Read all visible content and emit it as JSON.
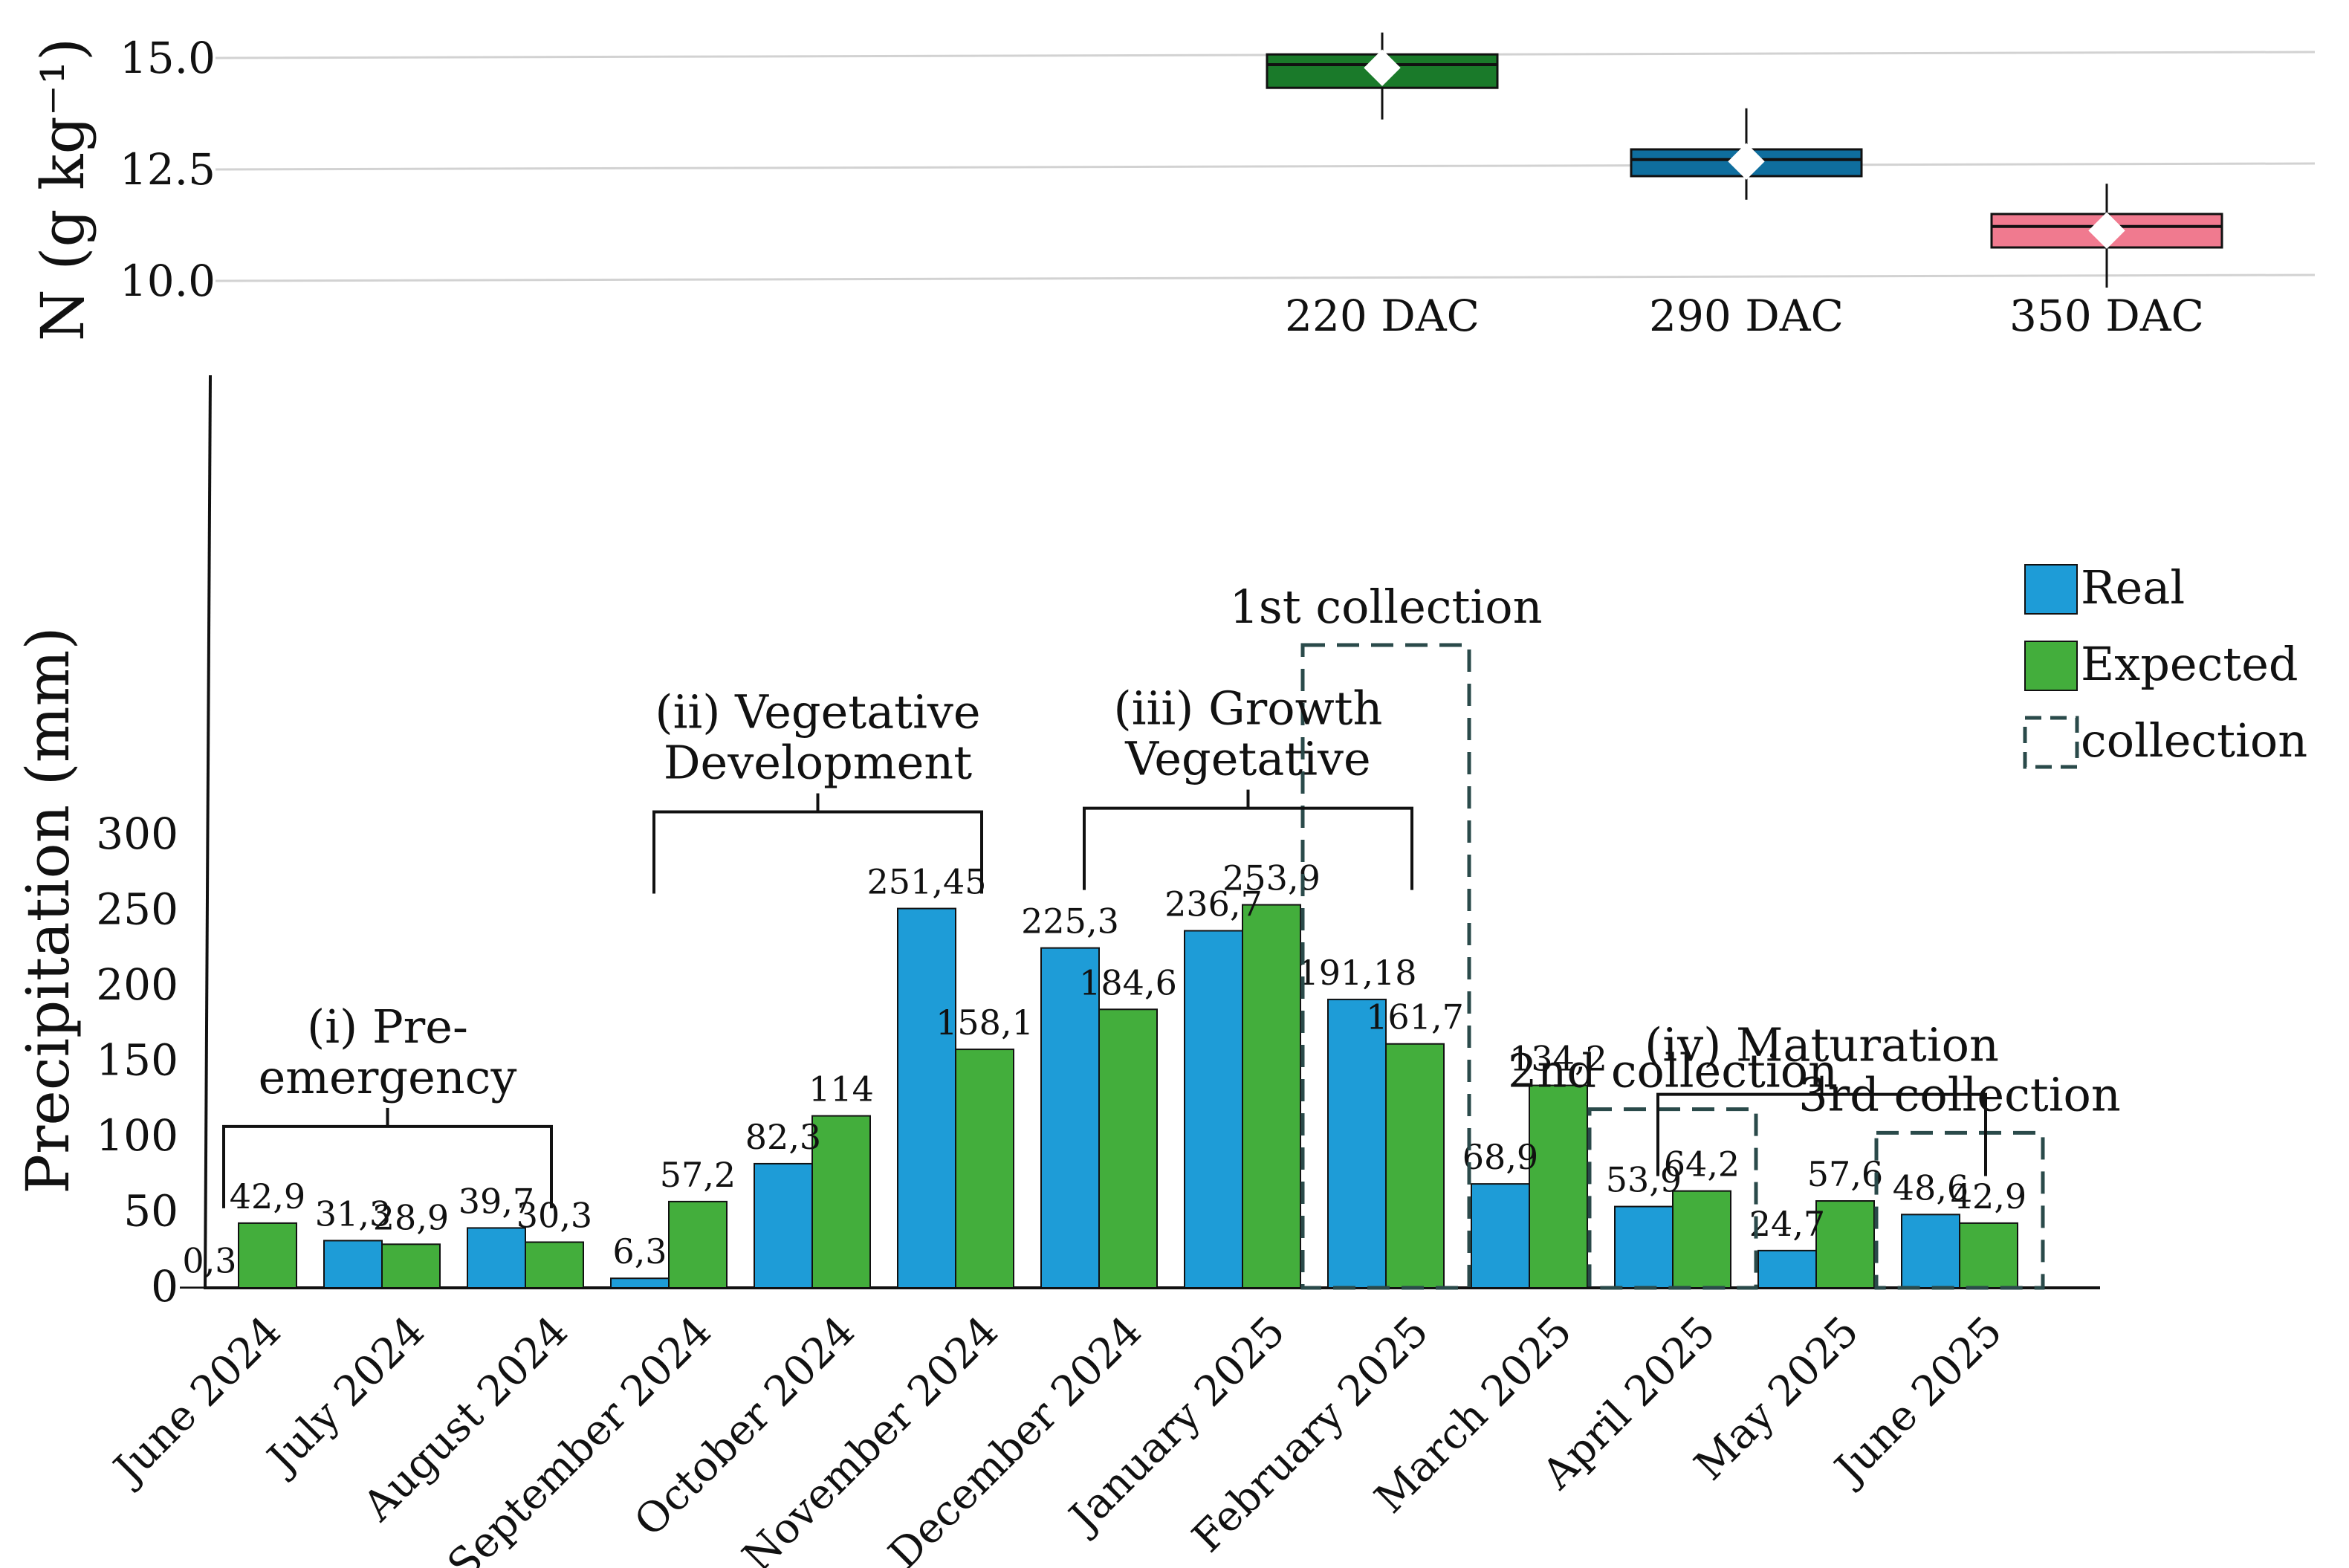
{
  "chart_data": [
    {
      "type": "box",
      "ylabel": "N (g kg⁻¹)",
      "yticks": [
        "10.0",
        "12.5",
        "15.0"
      ],
      "ylim": [
        10.0,
        15.0
      ],
      "grid": true,
      "boxes": [
        {
          "label": "220 DAC",
          "color": "#1a7a2a",
          "q1": 14.33,
          "median": 14.85,
          "q3": 15.08,
          "min": 13.62,
          "max": 15.57,
          "mean": 14.78
        },
        {
          "label": "290 DAC",
          "color": "#0f6e9e",
          "q1": 12.35,
          "median": 12.72,
          "q3": 12.95,
          "min": 11.82,
          "max": 13.87,
          "mean": 12.68
        },
        {
          "label": "350 DAC",
          "color": "#f07a8f",
          "q1": 10.75,
          "median": 11.22,
          "q3": 11.5,
          "min": 9.85,
          "max": 12.18,
          "mean": 11.13
        }
      ]
    },
    {
      "type": "bar",
      "ylabel": "Precipitation (mm)",
      "yticks": [
        "0",
        "50",
        "100",
        "150",
        "200",
        "250",
        "300"
      ],
      "ylim": [
        0,
        300
      ],
      "categories": [
        "June 2024",
        "July 2024",
        "August 2024",
        "September 2024",
        "October 2024",
        "November 2024",
        "December 2024",
        "January 2025",
        "February 2025",
        "March 2025",
        "April 2025",
        "May 2025",
        "June 2025"
      ],
      "series": [
        {
          "name": "Real",
          "color": "#1e9cd7",
          "values": [
            0.3,
            31.3,
            39.7,
            6.3,
            82.3,
            251.45,
            225.3,
            236.7,
            191.18,
            68.9,
            53.9,
            24.7,
            48.6
          ],
          "labels": [
            "0,3",
            "31,3",
            "39,7",
            "6,3",
            "82,3",
            "251,45",
            "225,3",
            "236,7",
            "191,18",
            "68,9",
            "53,9",
            "24,7",
            "48,6"
          ]
        },
        {
          "name": "Expected",
          "color": "#43ae3c",
          "values": [
            42.9,
            28.9,
            30.3,
            57.2,
            114,
            158.1,
            184.6,
            253.9,
            161.7,
            134.2,
            64.2,
            57.6,
            42.9
          ],
          "labels": [
            "42,9",
            "28,9",
            "30,3",
            "57,2",
            "114",
            "158,1",
            "184,6",
            "253,9",
            "161,7",
            "134,2",
            "64,2",
            "57,6",
            "42,9"
          ]
        }
      ],
      "legend": {
        "position": "right",
        "items": [
          "Real",
          "Expected",
          "collection"
        ],
        "collection_color": "#2a4a4a"
      },
      "phases": [
        {
          "label": [
            "(i) Pre-",
            "emergency"
          ],
          "from": "June 2024",
          "to": "August 2024"
        },
        {
          "label": [
            "(ii) Vegetative",
            "Development"
          ],
          "from": "September 2024",
          "to": "November 2024"
        },
        {
          "label": [
            "(iii) Growth",
            "Vegetative"
          ],
          "from": "December 2024",
          "to": "February 2025"
        },
        {
          "label": [
            "(iv) Maturation"
          ],
          "from": "April 2025",
          "to": "June 2025"
        }
      ],
      "collections": [
        {
          "label": "1st collection",
          "month": "February 2025"
        },
        {
          "label": "2nd collection",
          "month": "April 2025"
        },
        {
          "label": "3rd collection",
          "month": "June 2025"
        }
      ]
    }
  ]
}
